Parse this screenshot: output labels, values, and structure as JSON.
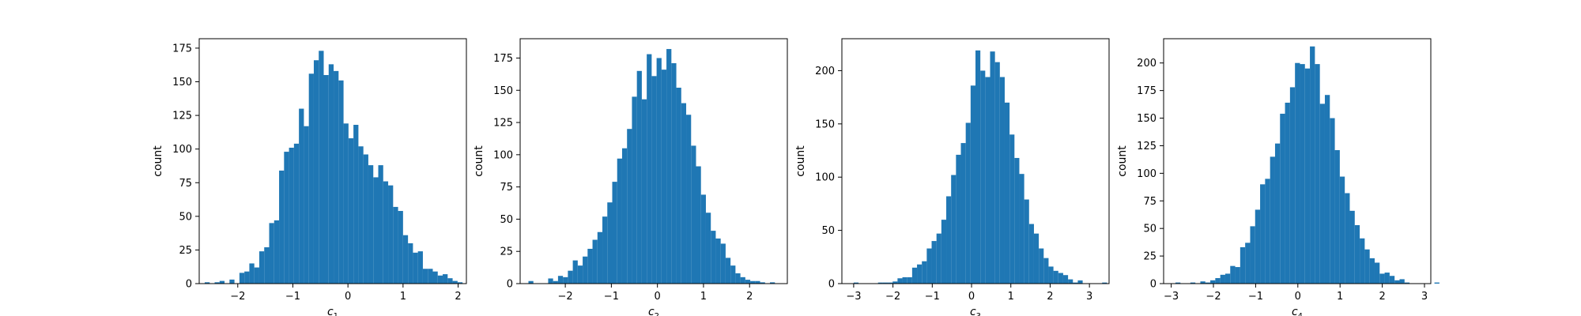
{
  "chart_data": [
    {
      "type": "histogram",
      "xlabel": "c",
      "xlabel_subscript": "1",
      "ylabel": "count",
      "xlim": [
        -2.7,
        2.15
      ],
      "ylim": [
        0,
        182
      ],
      "xticks": [
        -2,
        -1,
        0,
        1,
        2
      ],
      "yticks": [
        0,
        25,
        50,
        75,
        100,
        125,
        150,
        175
      ],
      "grid": false,
      "color": "#1f77b4",
      "bin_start": -2.6,
      "bin_width": 0.09,
      "values": [
        1,
        0,
        1,
        2,
        0,
        3,
        0,
        8,
        9,
        15,
        12,
        24,
        27,
        45,
        47,
        84,
        98,
        101,
        104,
        130,
        117,
        156,
        166,
        173,
        155,
        163,
        158,
        151,
        119,
        108,
        118,
        102,
        96,
        88,
        79,
        88,
        76,
        73,
        57,
        54,
        36,
        30,
        23,
        24,
        11,
        11,
        9,
        6,
        7,
        4,
        2,
        1
      ]
    },
    {
      "type": "histogram",
      "xlabel": "c",
      "xlabel_subscript": "2",
      "ylabel": "count",
      "xlim": [
        -2.98,
        2.82
      ],
      "ylim": [
        0,
        190
      ],
      "xticks": [
        -2,
        -1,
        0,
        1,
        2
      ],
      "yticks": [
        0,
        25,
        50,
        75,
        100,
        125,
        150,
        175
      ],
      "grid": false,
      "color": "#1f77b4",
      "bin_start": -2.8,
      "bin_width": 0.107,
      "values": [
        2,
        0,
        0,
        0,
        4,
        2,
        6,
        5,
        10,
        18,
        14,
        21,
        27,
        34,
        40,
        52,
        63,
        79,
        97,
        105,
        120,
        145,
        165,
        143,
        178,
        161,
        175,
        166,
        182,
        171,
        152,
        140,
        131,
        107,
        91,
        69,
        55,
        41,
        35,
        31,
        20,
        14,
        8,
        5,
        3,
        2,
        2,
        1,
        0,
        1
      ]
    },
    {
      "type": "histogram",
      "xlabel": "c",
      "xlabel_subscript": "3",
      "ylabel": "count",
      "xlim": [
        -3.3,
        3.5
      ],
      "ylim": [
        0,
        230
      ],
      "xticks": [
        -3,
        -2,
        -1,
        0,
        1,
        2,
        3
      ],
      "yticks": [
        0,
        50,
        100,
        150,
        200
      ],
      "grid": false,
      "color": "#1f77b4",
      "bin_start": -3.0,
      "bin_width": 0.124,
      "values": [
        1,
        0,
        0,
        0,
        0,
        1,
        1,
        1,
        2,
        5,
        6,
        6,
        15,
        18,
        21,
        33,
        40,
        47,
        60,
        82,
        102,
        121,
        132,
        151,
        186,
        219,
        200,
        194,
        218,
        208,
        194,
        170,
        140,
        118,
        103,
        79,
        56,
        47,
        33,
        24,
        16,
        12,
        10,
        8,
        4,
        1,
        3,
        0,
        0,
        0,
        0,
        1
      ]
    },
    {
      "type": "histogram",
      "xlabel": "c",
      "xlabel_subscript": "4",
      "ylabel": "count",
      "xlim": [
        -3.18,
        3.15
      ],
      "ylim": [
        0,
        222
      ],
      "xticks": [
        -3,
        -2,
        -1,
        0,
        1,
        2,
        3
      ],
      "yticks": [
        0,
        25,
        50,
        75,
        100,
        125,
        150,
        175,
        200
      ],
      "grid": false,
      "color": "#1f77b4",
      "bin_start": -2.9,
      "bin_width": 0.118,
      "values": [
        1,
        0,
        0,
        1,
        0,
        2,
        1,
        3,
        5,
        8,
        9,
        16,
        15,
        33,
        37,
        52,
        67,
        90,
        95,
        115,
        127,
        154,
        164,
        178,
        200,
        199,
        195,
        215,
        199,
        163,
        171,
        150,
        121,
        97,
        82,
        66,
        53,
        41,
        31,
        23,
        19,
        9,
        10,
        7,
        3,
        4,
        1,
        0,
        0,
        0,
        0,
        0,
        1
      ]
    }
  ]
}
